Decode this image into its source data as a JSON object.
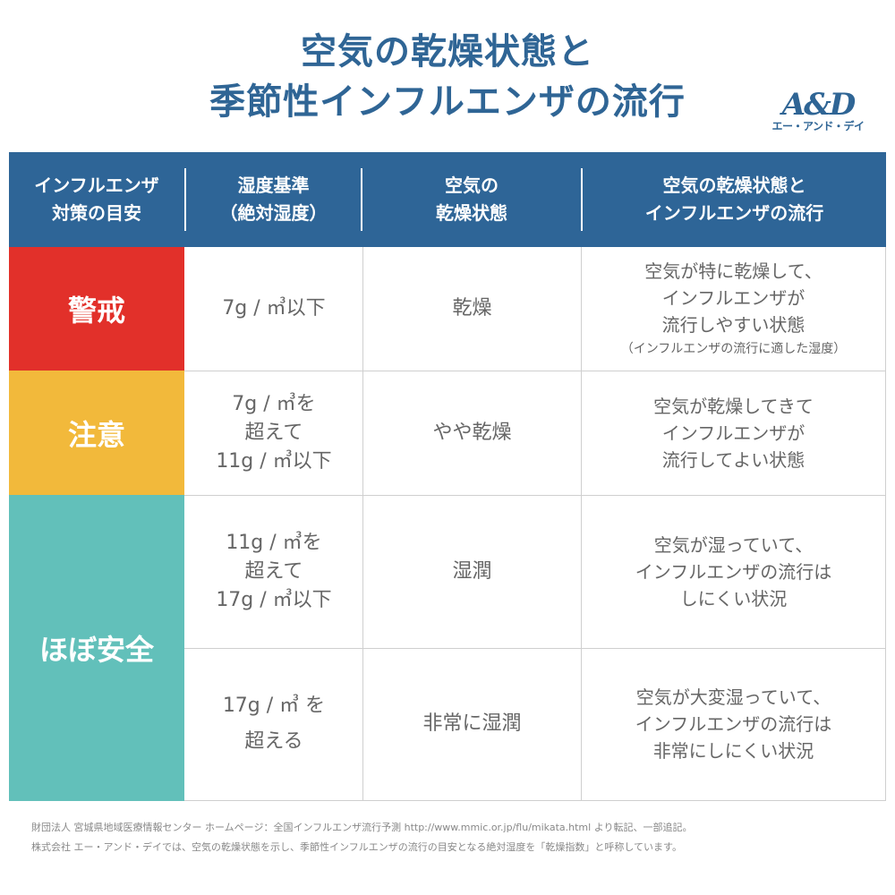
{
  "title": {
    "line1": "空気の乾燥状態と",
    "line2": "季節性インフルエンザの流行"
  },
  "logo": {
    "mark": "A&D",
    "kana": "エー・アンド・デイ"
  },
  "header": {
    "col1": [
      "インフルエンザ",
      "対策の目安"
    ],
    "col2": [
      "湿度基準",
      "（絶対湿度）"
    ],
    "col3": [
      "空気の",
      "乾燥状態"
    ],
    "col4": [
      "空気の乾燥状態と",
      "インフルエンザの流行"
    ]
  },
  "levels": [
    {
      "label": "警戒",
      "color": "#e2302a"
    },
    {
      "label": "注意",
      "color": "#f2b93b"
    },
    {
      "label": "ほぼ安全",
      "color": "#62c0ba"
    }
  ],
  "rows": [
    {
      "humidity": [
        "7g / ㎥以下"
      ],
      "state": "乾燥",
      "desc": [
        "空気が特に乾燥して、",
        "インフルエンザが",
        "流行しやすい状態"
      ],
      "note": "（インフルエンザの流行に適した湿度）"
    },
    {
      "humidity": [
        "7g / ㎥を",
        "超えて",
        "11g / ㎥以下"
      ],
      "state": "やや乾燥",
      "desc": [
        "空気が乾燥してきて",
        "インフルエンザが",
        "流行してよい状態"
      ]
    },
    {
      "humidity": [
        "11g / ㎥を",
        "超えて",
        "17g / ㎥以下"
      ],
      "state": "湿潤",
      "desc": [
        "空気が湿っていて、",
        "インフルエンザの流行は",
        "しにくい状況"
      ]
    },
    {
      "humidity": [
        "17g / ㎥ を",
        "超える"
      ],
      "state": "非常に湿潤",
      "desc": [
        "空気が大変湿っていて、",
        "インフルエンザの流行は",
        "非常にしにくい状況"
      ]
    }
  ],
  "footer": {
    "line1": "財団法人 宮城県地域医療情報センター ホームページ：全国インフルエンザ流行予測 http://www.mmic.or.jp/flu/mikata.html より転記、一部追記。",
    "line2": "株式会社 エー・アンド・デイでは、空気の乾燥状態を示し、季節性インフルエンザの流行の目安となる絶対湿度を「乾燥指数」と呼称しています。"
  }
}
